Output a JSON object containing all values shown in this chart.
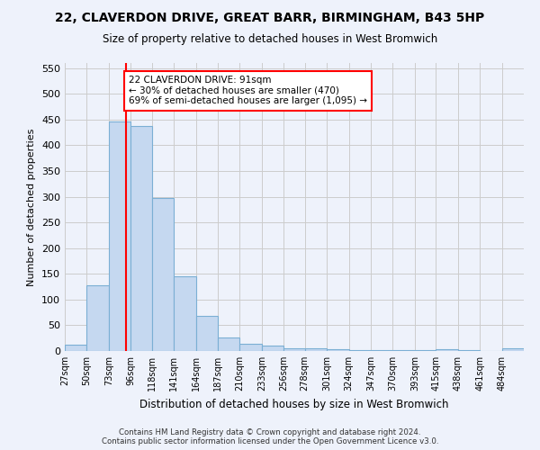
{
  "title1": "22, CLAVERDON DRIVE, GREAT BARR, BIRMINGHAM, B43 5HP",
  "title2": "Size of property relative to detached houses in West Bromwich",
  "xlabel": "Distribution of detached houses by size in West Bromwich",
  "ylabel": "Number of detached properties",
  "footer1": "Contains HM Land Registry data © Crown copyright and database right 2024.",
  "footer2": "Contains public sector information licensed under the Open Government Licence v3.0.",
  "annotation_line1": "22 CLAVERDON DRIVE: 91sqm",
  "annotation_line2": "← 30% of detached houses are smaller (470)",
  "annotation_line3": "69% of semi-detached houses are larger (1,095) →",
  "property_size": 91,
  "bar_labels": [
    "27sqm",
    "50sqm",
    "73sqm",
    "96sqm",
    "118sqm",
    "141sqm",
    "164sqm",
    "187sqm",
    "210sqm",
    "233sqm",
    "256sqm",
    "278sqm",
    "301sqm",
    "324sqm",
    "347sqm",
    "370sqm",
    "393sqm",
    "415sqm",
    "438sqm",
    "461sqm",
    "484sqm"
  ],
  "bar_edges": [
    27,
    50,
    73,
    96,
    118,
    141,
    164,
    187,
    210,
    233,
    256,
    278,
    301,
    324,
    347,
    370,
    393,
    415,
    438,
    461,
    484,
    507
  ],
  "bar_values": [
    13,
    127,
    447,
    438,
    297,
    145,
    69,
    27,
    14,
    10,
    6,
    5,
    3,
    2,
    1,
    1,
    1,
    4,
    1,
    0,
    6
  ],
  "bar_color": "#c5d8f0",
  "bar_edge_color": "#7bafd4",
  "marker_color": "red",
  "ylim": [
    0,
    560
  ],
  "yticks": [
    0,
    50,
    100,
    150,
    200,
    250,
    300,
    350,
    400,
    450,
    500,
    550
  ],
  "annotation_box_color": "red",
  "bg_color": "#eef2fb",
  "grid_color": "#cccccc"
}
